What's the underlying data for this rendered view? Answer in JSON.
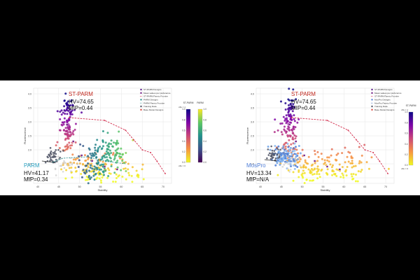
{
  "chart_data": [
    {
      "type": "scatter",
      "method_label": "PARM",
      "method_color": "#2aa0c0",
      "st_label": "ST-PARM",
      "st_color": "#c0281e",
      "st_hv": "HV=74.65",
      "st_mip": "MIP=0.44",
      "method_hv": "HV=41.17",
      "method_mip": "MIP=0.34",
      "xlabel": "Stability",
      "ylabel": "Fluorescence",
      "xlim": [
        39,
        72
      ],
      "ylim": [
        0.8,
        4.2
      ],
      "x_ticks": [
        40,
        45,
        50,
        55,
        60,
        65,
        70
      ],
      "y_ticks": [
        1.0,
        1.5,
        2.0,
        2.5,
        3.0,
        3.5,
        4.0
      ],
      "grid": true,
      "legend_position": "top-right",
      "legend": [
        "ST-PARM Designs",
        "Mean values per preference",
        "ST-PARM Pareto Frontier",
        "PARM Designs",
        "PARM Pareto Frontier",
        "Training Data",
        "Base Model Designs"
      ],
      "colorbars": [
        {
          "title": "ST-PARM",
          "scale": "plasma",
          "ticks": [
            "1.0",
            "0.8",
            "0.6",
            "0.4",
            "0.2",
            "0.0"
          ],
          "top_label": "αflu = 1",
          "bottom_label": "αflu = 0"
        },
        {
          "title": "PARM",
          "scale": "viridis",
          "ticks": [
            "1.0",
            "0.8",
            "0.6",
            "0.4",
            "0.2",
            "0.0"
          ]
        }
      ],
      "st_frontier": [
        [
          47.5,
          3.15
        ],
        [
          56,
          3.05
        ],
        [
          61,
          2.7
        ],
        [
          63,
          2.35
        ],
        [
          65,
          2.0
        ],
        [
          67,
          1.9
        ],
        [
          68.5,
          1.6
        ],
        [
          70.5,
          1.15
        ]
      ],
      "method_frontier": [
        [
          43.5,
          1.55
        ],
        [
          46,
          1.7
        ],
        [
          52,
          1.75
        ],
        [
          56,
          1.6
        ],
        [
          61,
          1.5
        ]
      ],
      "base_frontier": [
        [
          41,
          1.6
        ],
        [
          44,
          1.55
        ]
      ],
      "clusters": [
        {
          "group": "st",
          "cx": 46.8,
          "cy": 2.6,
          "sx": 1.2,
          "sy": 0.55,
          "n": 95
        },
        {
          "group": "st",
          "cx": 47.2,
          "cy": 3.5,
          "sx": 0.7,
          "sy": 0.35,
          "n": 35
        },
        {
          "group": "st",
          "cx": 52.0,
          "cy": 1.35,
          "sx": 3.0,
          "sy": 0.3,
          "n": 90
        },
        {
          "group": "st",
          "cx": 60.5,
          "cy": 1.2,
          "sx": 3.5,
          "sy": 0.3,
          "n": 45
        },
        {
          "group": "method",
          "cx": 55.5,
          "cy": 1.55,
          "sx": 3.0,
          "sy": 0.4,
          "n": 120
        },
        {
          "group": "method",
          "cx": 57.5,
          "cy": 2.05,
          "sx": 2.0,
          "sy": 0.25,
          "n": 40
        },
        {
          "group": "train",
          "cx": 43.5,
          "cy": 1.75,
          "sx": 1.1,
          "sy": 0.12,
          "n": 40
        },
        {
          "group": "base",
          "cx": 46.5,
          "cy": 1.5,
          "sx": 1.5,
          "sy": 0.2,
          "n": 25
        }
      ],
      "mean_points": [
        [
          47,
          2.9
        ],
        [
          48.5,
          2.3
        ],
        [
          50.5,
          1.8
        ],
        [
          53,
          1.6
        ],
        [
          56,
          1.4
        ],
        [
          59,
          1.3
        ]
      ]
    },
    {
      "type": "scatter",
      "method_label": "MosPro",
      "method_color": "#4f7ed8",
      "st_label": "ST-PARM",
      "st_color": "#c0281e",
      "st_hv": "HV=74.65",
      "st_mip": "MIP=0.44",
      "method_hv": "HV=13.34",
      "method_mip": "MIP=N/A",
      "xlabel": "Stability",
      "ylabel": "Fluorescence",
      "xlim": [
        39,
        72
      ],
      "ylim": [
        0.8,
        4.2
      ],
      "x_ticks": [
        40,
        45,
        50,
        55,
        60,
        65,
        70
      ],
      "y_ticks": [
        1.0,
        1.5,
        2.0,
        2.5,
        3.0,
        3.5,
        4.0
      ],
      "grid": true,
      "legend_position": "top-right",
      "legend": [
        "ST-PARM Designs",
        "Mean values per preference",
        "ST-PARM Pareto Frontier",
        "MosPro Designs",
        "MosPro Pareto Frontier",
        "Training Data",
        "Base Model Designs"
      ],
      "colorbars": [
        {
          "title": "ST-PARM",
          "scale": "plasma",
          "ticks": [
            "1.0",
            "0.8",
            "0.6",
            "0.4",
            "0.2",
            "0.0"
          ],
          "top_label": "αflu = 1",
          "bottom_label": "αflu = 0"
        }
      ],
      "st_frontier": [
        [
          47.5,
          3.15
        ],
        [
          56,
          3.05
        ],
        [
          61,
          2.7
        ],
        [
          63,
          2.35
        ],
        [
          65,
          2.0
        ],
        [
          67,
          1.9
        ],
        [
          68.5,
          1.6
        ],
        [
          70.5,
          1.15
        ]
      ],
      "method_frontier": [
        [
          43,
          1.85
        ],
        [
          45.5,
          1.9
        ],
        [
          47.5,
          1.75
        ]
      ],
      "base_frontier": [
        [
          41,
          1.65
        ],
        [
          44,
          1.6
        ]
      ],
      "clusters": [
        {
          "group": "st",
          "cx": 46.8,
          "cy": 2.6,
          "sx": 1.2,
          "sy": 0.55,
          "n": 95
        },
        {
          "group": "st",
          "cx": 47.2,
          "cy": 3.5,
          "sx": 0.7,
          "sy": 0.35,
          "n": 35
        },
        {
          "group": "st",
          "cx": 52.5,
          "cy": 1.35,
          "sx": 3.5,
          "sy": 0.3,
          "n": 100
        },
        {
          "group": "st",
          "cx": 60.5,
          "cy": 1.3,
          "sx": 3.8,
          "sy": 0.35,
          "n": 70
        },
        {
          "group": "method",
          "cx": 46.0,
          "cy": 1.75,
          "sx": 1.4,
          "sy": 0.2,
          "n": 110
        },
        {
          "group": "train",
          "cx": 43.5,
          "cy": 1.8,
          "sx": 1.0,
          "sy": 0.1,
          "n": 35
        },
        {
          "group": "base",
          "cx": 47.0,
          "cy": 1.55,
          "sx": 1.4,
          "sy": 0.18,
          "n": 20
        }
      ],
      "mean_points": [
        [
          47,
          2.9
        ],
        [
          48.5,
          2.3
        ],
        [
          50.5,
          1.8
        ],
        [
          53,
          1.6
        ],
        [
          56,
          1.4
        ],
        [
          59,
          1.3
        ]
      ]
    }
  ]
}
